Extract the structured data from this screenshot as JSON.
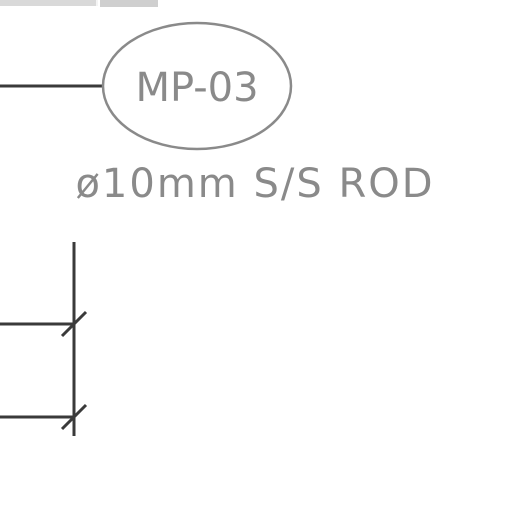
{
  "drawing": {
    "tag_label": "MP-03",
    "spec_label": "ø10mm S/S ROD"
  },
  "colors": {
    "background": "#ffffff",
    "linework": "#3a3a3a",
    "annotation": "#8a8a8a",
    "toolbar_strip": "#d0d0d0"
  }
}
